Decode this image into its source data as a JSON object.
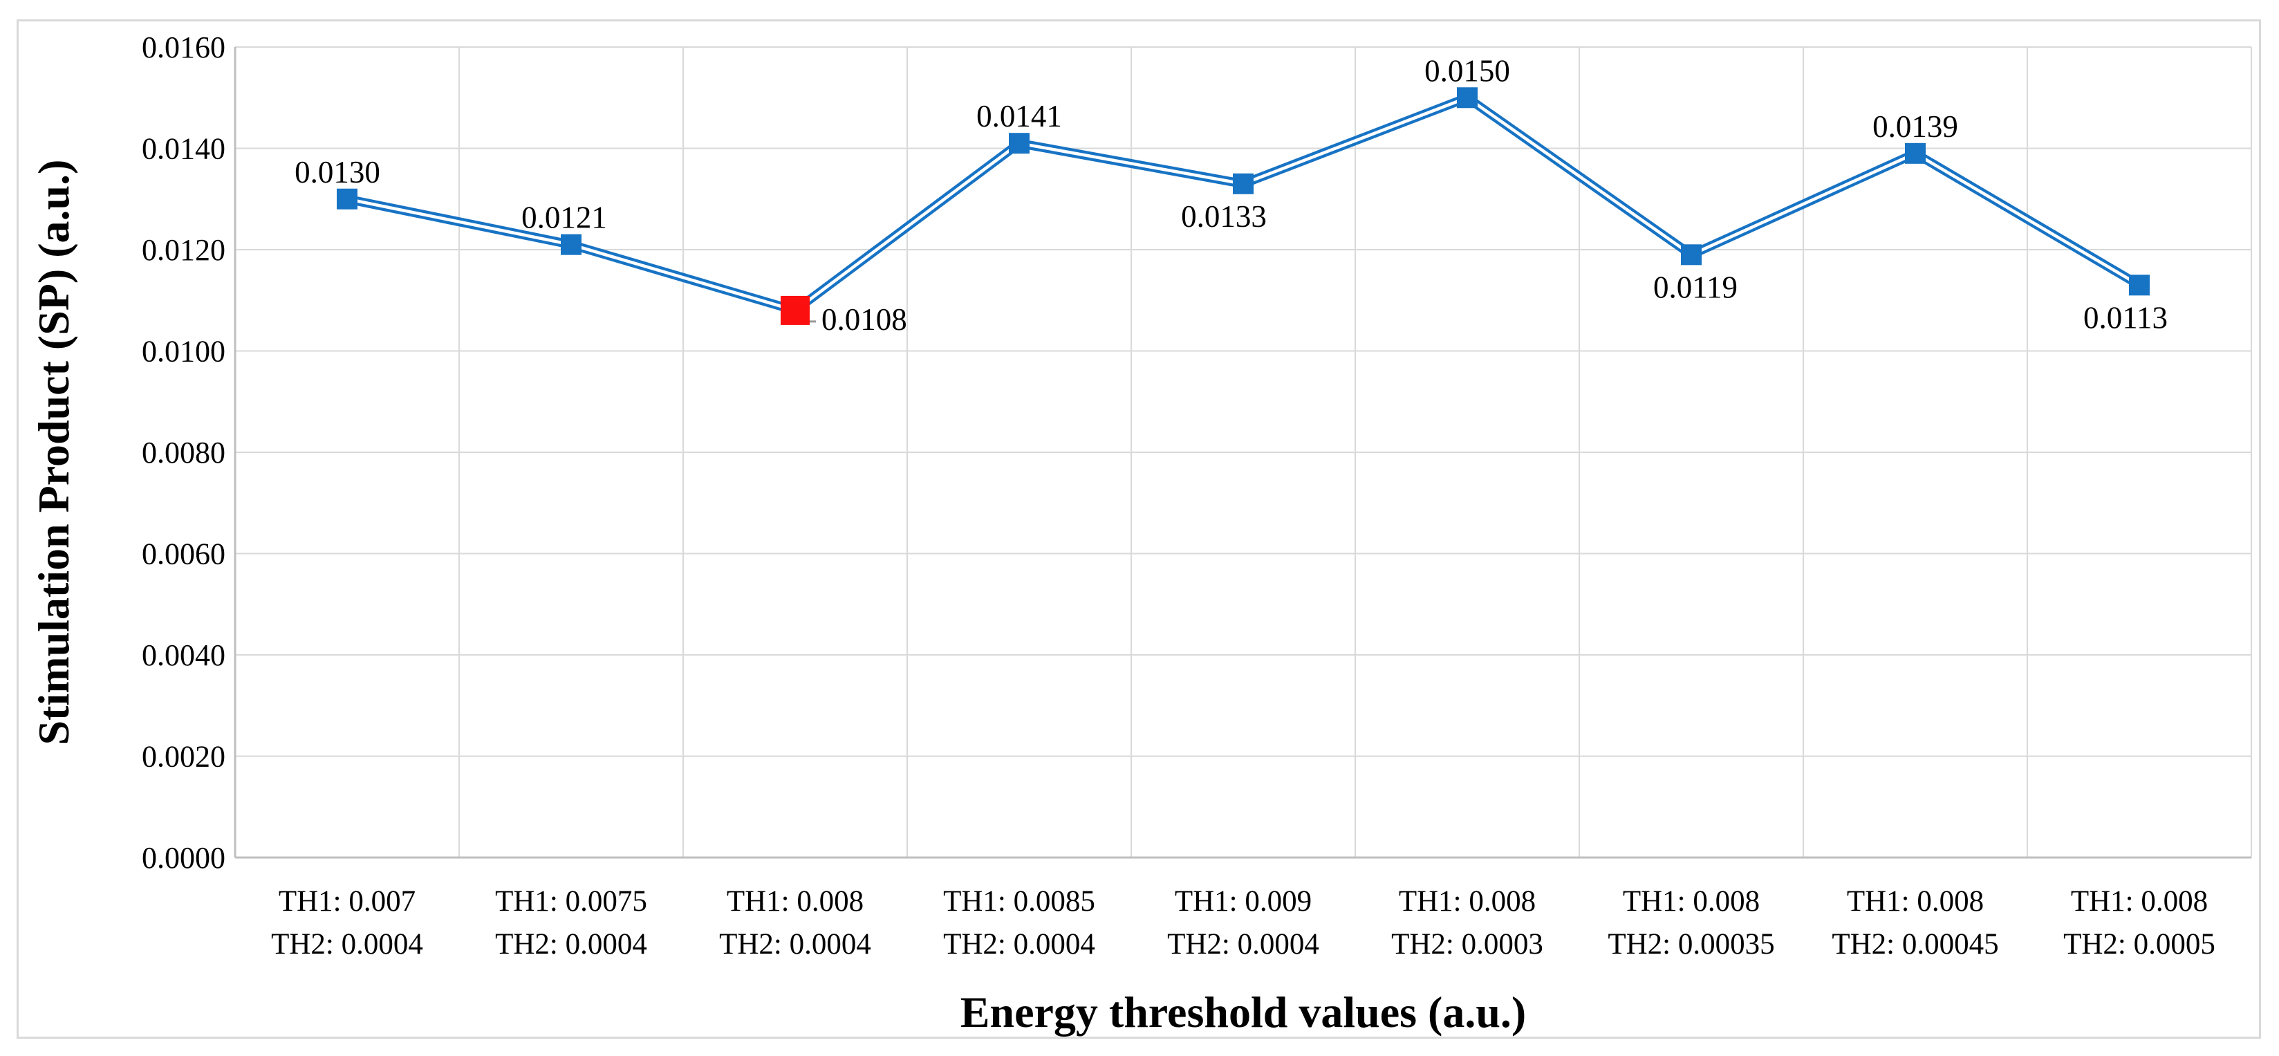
{
  "chart_data": {
    "type": "line",
    "title": "",
    "xlabel": "Energy threshold values (a.u.)",
    "ylabel": "Stimulation Product (SP) (a.u.)",
    "categories": [
      [
        "TH1: 0.007",
        "TH2: 0.0004"
      ],
      [
        "TH1: 0.0075",
        "TH2: 0.0004"
      ],
      [
        "TH1: 0.008",
        "TH2: 0.0004"
      ],
      [
        "TH1: 0.0085",
        "TH2: 0.0004"
      ],
      [
        "TH1: 0.009",
        "TH2: 0.0004"
      ],
      [
        "TH1: 0.008",
        "TH2: 0.0003"
      ],
      [
        "TH1: 0.008",
        "TH2: 0.00035"
      ],
      [
        "TH1: 0.008",
        "TH2: 0.00045"
      ],
      [
        "TH1: 0.008",
        "TH2: 0.0005"
      ]
    ],
    "series": [
      {
        "name": "Stimulation Product (SP)",
        "values": [
          0.013,
          0.0121,
          0.0108,
          0.0141,
          0.0133,
          0.015,
          0.0119,
          0.0139,
          0.0113
        ],
        "point_labels": [
          "0.0130",
          "0.0121",
          "0.0108",
          "0.0141",
          "0.0133",
          "0.0150",
          "0.0119",
          "0.0139",
          "0.0113"
        ]
      }
    ],
    "ylim": [
      0.0,
      0.016
    ],
    "y_tick_step": 0.002,
    "y_tick_labels": [
      "0.0000",
      "0.0020",
      "0.0040",
      "0.0060",
      "0.0080",
      "0.0100",
      "0.0120",
      "0.0140",
      "0.0160"
    ],
    "grid": "both",
    "legend": "none",
    "line_style": "double",
    "marker_shape": "square",
    "highlight_point": {
      "index": 2,
      "reason": "selected point",
      "label_position": "right-leader"
    },
    "label_positions": [
      "above",
      "above",
      "right",
      "above",
      "below",
      "above",
      "below",
      "above",
      "below"
    ],
    "colors": {
      "line": "#1773C4",
      "marker": "#1773C4",
      "highlight_marker": "#FB0F0F",
      "gridline": "#D9D9D9",
      "axis_line": "#BFBFBF",
      "leader_line": "#999999",
      "text": "#000000",
      "border": "#D9D9D9",
      "background": "#FFFFFF"
    }
  }
}
